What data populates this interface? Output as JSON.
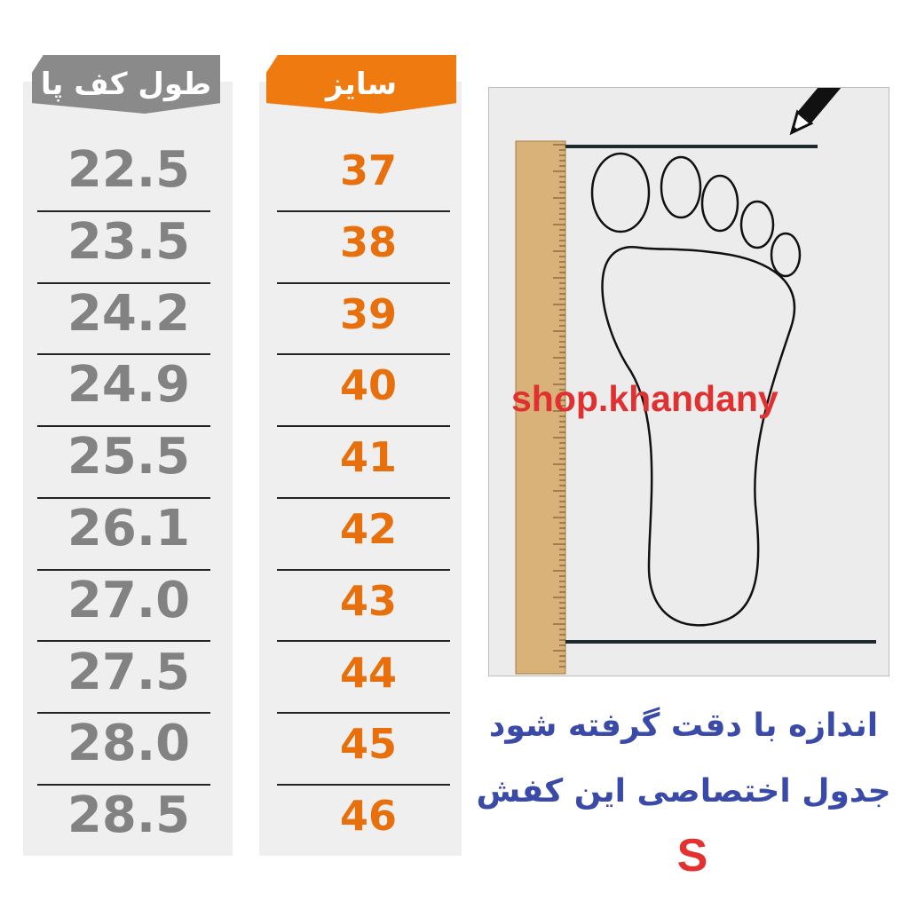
{
  "length_column": {
    "header": "طول کف پا",
    "values": [
      "22.5",
      "23.5",
      "24.2",
      "24.9",
      "25.5",
      "26.1",
      "27.0",
      "27.5",
      "28.0",
      "28.5"
    ]
  },
  "size_column": {
    "header": "سایز",
    "values": [
      "37",
      "38",
      "39",
      "40",
      "41",
      "42",
      "43",
      "44",
      "45",
      "46"
    ]
  },
  "illustration": {
    "watermark": "shop.khandany",
    "icons": [
      "pencil-icon",
      "ruler-icon",
      "foot-outline-icon"
    ]
  },
  "note": {
    "line1": "اندازه با دقت گرفته شود",
    "line2": "جدول اختصاصی این کفش",
    "code": "S"
  },
  "colors": {
    "orange": "#ef7a10",
    "gray": "#8a8a8a",
    "blue": "#3a4aa8",
    "red": "#e03030"
  }
}
